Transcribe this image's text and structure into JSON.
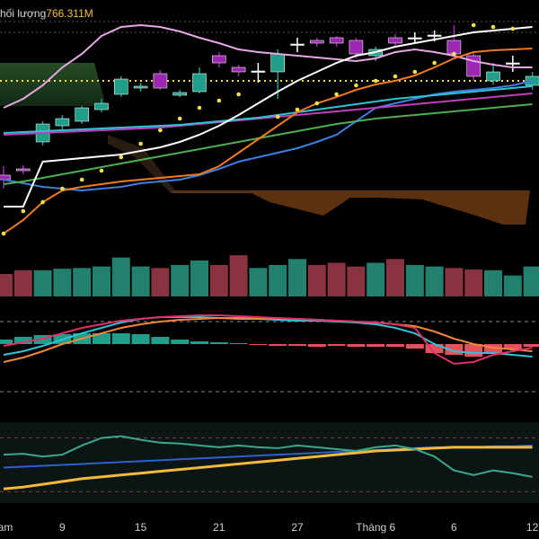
{
  "legend": {
    "label": "hối lượng",
    "value": "766.311M"
  },
  "chart_data": [
    {
      "type": "candlestick",
      "categories": [
        "am",
        null,
        null,
        "9",
        null,
        null,
        null,
        "15",
        null,
        null,
        null,
        "21",
        null,
        null,
        null,
        "27",
        null,
        null,
        null,
        "Tháng 6",
        null,
        null,
        null,
        "6",
        null,
        null,
        null,
        "12"
      ],
      "open": [
        85,
        92,
        122,
        140,
        145,
        158,
        175,
        182,
        198,
        174,
        178,
        218,
        205,
        200,
        200,
        230,
        235,
        238,
        235,
        218,
        238,
        238,
        240,
        235,
        218,
        190,
        210,
        185
      ],
      "high": [
        95,
        96,
        145,
        152,
        162,
        170,
        195,
        188,
        202,
        180,
        205,
        222,
        208,
        210,
        225,
        238,
        238,
        240,
        238,
        228,
        242,
        244,
        246,
        252,
        222,
        210,
        218,
        200
      ],
      "low": [
        70,
        86,
        118,
        136,
        142,
        155,
        172,
        178,
        180,
        172,
        176,
        205,
        195,
        188,
        170,
        222,
        228,
        228,
        215,
        212,
        228,
        232,
        234,
        215,
        190,
        186,
        200,
        180
      ],
      "close": [
        80,
        90,
        142,
        148,
        160,
        165,
        192,
        184,
        182,
        177,
        198,
        210,
        200,
        201,
        220,
        231,
        232,
        232,
        220,
        225,
        232,
        238,
        241,
        220,
        195,
        200,
        210,
        195
      ],
      "colors": [
        "#9c27b0",
        "#9c27b0",
        "#1f9e89",
        "#1f9e89",
        "#1f9e89",
        "#1f9e89",
        "#1f9e89",
        "#1f9e89",
        "#9c27b0",
        "#1f9e89",
        "#1f9e89",
        "#9c27b0",
        "#9c27b0",
        "#ffffff",
        "#1f9e89",
        "#ffffff",
        "#9c27b0",
        "#9c27b0",
        "#9c27b0",
        "#1f9e89",
        "#9c27b0",
        "#ffffff",
        "#ffffff",
        "#9c27b0",
        "#9c27b0",
        "#1f9e89",
        "#ffffff",
        "#1f9e89"
      ],
      "ylim": [
        0,
        280
      ],
      "hline": {
        "value": 190,
        "color": "#f5e04a"
      },
      "series": [
        {
          "color": "#e8a6e6",
          "values": [
            160,
            170,
            185,
            205,
            220,
            240,
            250,
            252,
            250,
            245,
            238,
            232,
            225,
            222,
            220,
            218,
            216,
            214,
            212,
            215,
            222,
            225,
            222,
            218,
            212,
            208,
            205,
            205
          ]
        },
        {
          "color": "#3d7fe0",
          "values": [
            80,
            76,
            72,
            70,
            68,
            70,
            72,
            76,
            78,
            80,
            85,
            92,
            100,
            105,
            110,
            115,
            122,
            130,
            145,
            160,
            165,
            170,
            175,
            178,
            180,
            182,
            185,
            190
          ]
        },
        {
          "color": "#4caf50",
          "values": [
            75,
            78,
            82,
            86,
            90,
            94,
            98,
            102,
            106,
            110,
            114,
            118,
            122,
            126,
            130,
            134,
            138,
            142,
            145,
            148,
            150,
            152,
            154,
            156,
            158,
            160,
            162,
            164
          ]
        },
        {
          "color": "#c03fbf",
          "values": [
            130,
            131,
            132,
            133,
            134,
            135,
            136,
            137,
            138,
            140,
            142,
            144,
            146,
            148,
            150,
            152,
            154,
            156,
            158,
            160,
            162,
            164,
            166,
            168,
            170,
            172,
            174,
            176
          ]
        },
        {
          "color": "#2ec4d6",
          "values": [
            132,
            133,
            134,
            135,
            136,
            137,
            138,
            139,
            140,
            141,
            143,
            145,
            147,
            149,
            152,
            155,
            158,
            161,
            164,
            167,
            170,
            172,
            174,
            176,
            178,
            180,
            182,
            184
          ]
        },
        {
          "color": "#f07a1e",
          "values": [
            20,
            35,
            55,
            68,
            72,
            75,
            78,
            80,
            82,
            84,
            86,
            95,
            110,
            125,
            140,
            155,
            165,
            172,
            180,
            186,
            190,
            196,
            205,
            215,
            222,
            224,
            225,
            226
          ]
        },
        {
          "color": "#ffffff",
          "values": [
            50,
            50,
            100,
            102,
            104,
            106,
            108,
            112,
            116,
            122,
            130,
            140,
            152,
            165,
            178,
            190,
            200,
            210,
            218,
            222,
            228,
            232,
            236,
            240,
            244,
            246,
            248,
            250
          ]
        },
        {
          "color": "#f5e04a",
          "style": "dots",
          "values": [
            20,
            45,
            55,
            70,
            80,
            90,
            105,
            120,
            135,
            148,
            160,
            168,
            175,
            null,
            150,
            158,
            165,
            175,
            185,
            190,
            195,
            200,
            210,
            220,
            252,
            250,
            248,
            null
          ]
        }
      ]
    },
    {
      "type": "bar",
      "ylim": [
        0,
        60
      ],
      "values": [
        30,
        35,
        35,
        37,
        38,
        40,
        52,
        40,
        38,
        42,
        48,
        42,
        55,
        38,
        42,
        50,
        42,
        45,
        40,
        45,
        50,
        42,
        40,
        38,
        36,
        35,
        28,
        40
      ],
      "colors": [
        "#8a3340",
        "#8a3340",
        "#22806f",
        "#22806f",
        "#22806f",
        "#22806f",
        "#22806f",
        "#22806f",
        "#8a3340",
        "#22806f",
        "#22806f",
        "#8a3340",
        "#8a3340",
        "#22806f",
        "#22806f",
        "#22806f",
        "#8a3340",
        "#8a3340",
        "#8a3340",
        "#22806f",
        "#8a3340",
        "#22806f",
        "#22806f",
        "#8a3340",
        "#8a3340",
        "#22806f",
        "#22806f",
        "#22806f"
      ]
    },
    {
      "type": "histogram",
      "ylim": [
        -57,
        43
      ],
      "levels": [
        25,
        -53
      ],
      "values": [
        5,
        8,
        10,
        11,
        12,
        12,
        12,
        11,
        8,
        5,
        3,
        2,
        1,
        -1,
        -2,
        -2,
        -3,
        -2,
        -3,
        -3,
        -3,
        -5,
        -10,
        -12,
        -14,
        -10,
        -6,
        -3
      ],
      "up_color": "#1f9e89",
      "down_color": "#e5535a",
      "series": [
        {
          "color": "#2ec4d6",
          "values": [
            -12,
            -8,
            -2,
            5,
            12,
            18,
            24,
            28,
            30,
            30,
            30,
            29,
            28,
            28,
            27,
            26,
            26,
            25,
            24,
            22,
            18,
            12,
            0,
            -8,
            -10,
            -10,
            -12,
            -14
          ]
        },
        {
          "color": "#f0873a",
          "values": [
            -20,
            -15,
            -8,
            0,
            6,
            12,
            18,
            22,
            25,
            27,
            28,
            29,
            29,
            29,
            28,
            28,
            27,
            26,
            25,
            24,
            22,
            20,
            14,
            6,
            0,
            -4,
            -6,
            -8
          ]
        },
        {
          "color": "#e0306a",
          "values": [
            -2,
            2,
            6,
            12,
            18,
            22,
            26,
            28,
            30,
            31,
            32,
            32,
            31,
            30,
            29,
            28,
            27,
            26,
            25,
            24,
            22,
            18,
            -10,
            -22,
            -20,
            -12,
            -8,
            -4
          ]
        }
      ]
    },
    {
      "type": "line",
      "ylim": [
        0,
        100
      ],
      "levels": [
        80,
        22
      ],
      "series": [
        {
          "color": "#2f5fd0",
          "values": [
            48,
            49,
            50,
            51,
            52,
            53,
            54,
            55,
            56,
            57,
            58,
            59,
            60,
            61,
            62,
            63,
            64,
            65,
            66,
            67,
            68,
            69,
            70,
            70,
            70,
            71,
            71,
            72
          ]
        },
        {
          "color": "#f6b93b",
          "width": 3,
          "values": [
            25,
            27,
            30,
            33,
            36,
            38,
            40,
            42,
            44,
            46,
            48,
            50,
            52,
            54,
            56,
            58,
            60,
            62,
            64,
            66,
            67,
            68,
            69,
            70,
            70,
            70,
            70,
            70
          ]
        },
        {
          "color": "#3aa88e",
          "values": [
            62,
            63,
            60,
            62,
            72,
            80,
            82,
            78,
            75,
            74,
            72,
            70,
            72,
            70,
            69,
            72,
            70,
            68,
            66,
            70,
            72,
            68,
            60,
            45,
            40,
            45,
            42,
            38
          ]
        }
      ]
    }
  ]
}
